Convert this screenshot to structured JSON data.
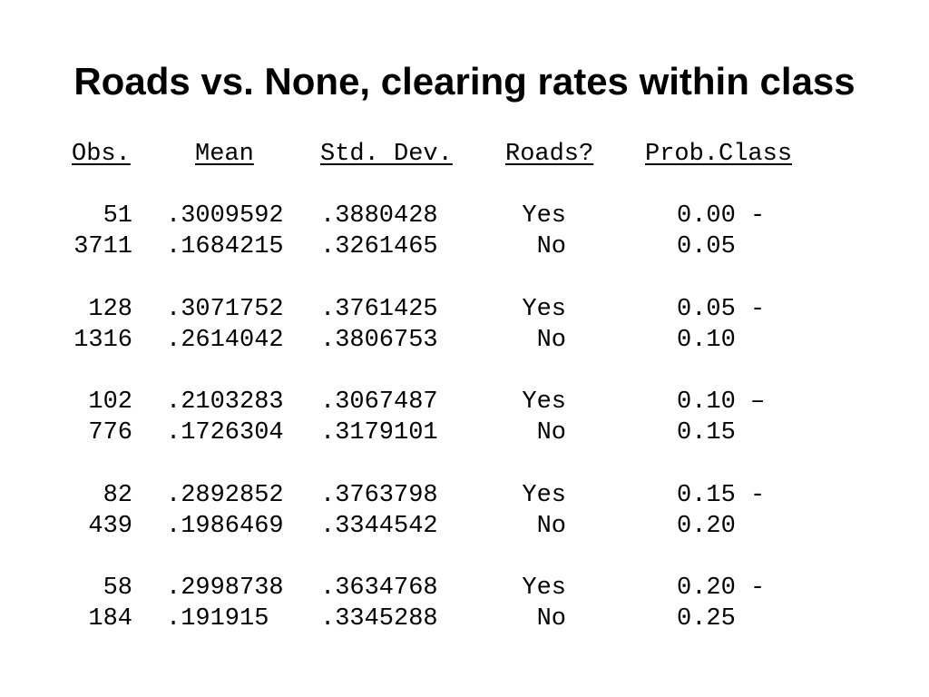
{
  "title": "Roads vs. None, clearing rates within class",
  "table": {
    "header": [
      "Obs.",
      "Mean",
      "Std. Dev.",
      "Roads?",
      "Prob.Class"
    ],
    "rows": [
      [
        "51",
        ".3009592",
        ".3880428",
        "Yes",
        "0.00 -"
      ],
      [
        "3711",
        ".1684215",
        ".3261465",
        "No",
        "0.05"
      ],
      [
        "128",
        ".3071752",
        ".3761425",
        "Yes",
        "0.05 -"
      ],
      [
        "1316",
        ".2614042",
        ".3806753",
        "No",
        "0.10"
      ],
      [
        "102",
        ".2103283",
        ".3067487",
        "Yes",
        "0.10 –"
      ],
      [
        "776",
        ".1726304",
        ".3179101",
        "No",
        "0.15"
      ],
      [
        "82",
        ".2892852",
        ".3763798",
        "Yes",
        "0.15 -"
      ],
      [
        "439",
        ".1986469",
        ".3344542",
        "No",
        "0.20"
      ],
      [
        "58",
        ".2998738",
        ".3634768",
        "Yes",
        "0.20 -"
      ],
      [
        "184",
        ".191915",
        ".3345288",
        "No",
        "0.25"
      ]
    ]
  }
}
